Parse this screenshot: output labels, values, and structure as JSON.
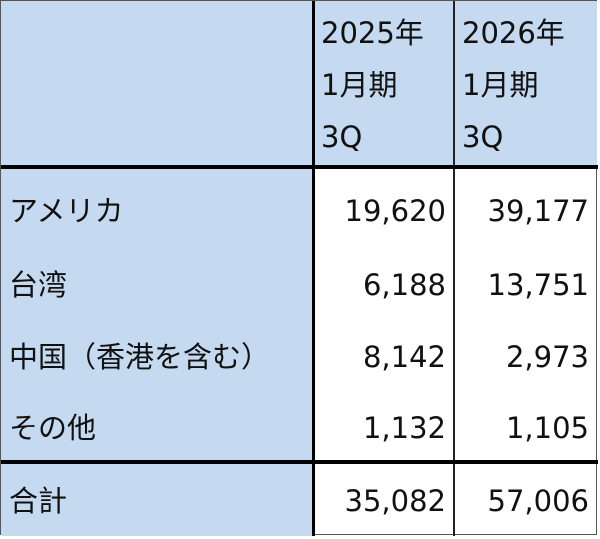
{
  "header": {
    "col1": "",
    "col2": [
      "2025年",
      "1月期",
      "3Q"
    ],
    "col3": [
      "2026年",
      "1月期",
      "3Q"
    ]
  },
  "rows": [
    {
      "label": "アメリカ",
      "v2025": "19,620",
      "v2026": "39,177"
    },
    {
      "label": "台湾",
      "v2025": "6,188",
      "v2026": "13,751"
    },
    {
      "label": "中国（香港を含む）",
      "v2025": "8,142",
      "v2026": "2,973"
    },
    {
      "label": "その他",
      "v2025": "1,132",
      "v2026": "1,105"
    }
  ],
  "total": {
    "label": "合計",
    "v2025": "35,082",
    "v2026": "57,006"
  },
  "colors": {
    "header_fill": "#c5d9f1",
    "border": "#000000"
  }
}
